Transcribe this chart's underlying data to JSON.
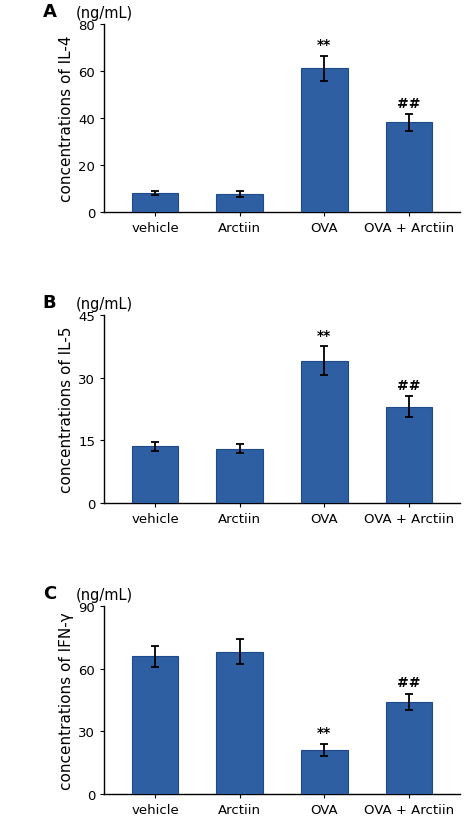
{
  "panels": [
    {
      "label": "A",
      "ylabel": "concentrations of IL-4",
      "unit": "(ng/mL)",
      "ylim": [
        0,
        80
      ],
      "yticks": [
        0,
        20,
        40,
        60,
        80
      ],
      "categories": [
        "vehicle",
        "Arctiin",
        "OVA",
        "OVA + Arctiin"
      ],
      "values": [
        8.0,
        7.5,
        61.0,
        38.0
      ],
      "errors": [
        1.0,
        1.2,
        5.5,
        3.5
      ],
      "annotations": [
        "",
        "",
        "**",
        "##"
      ]
    },
    {
      "label": "B",
      "ylabel": "concentrations of IL-5",
      "unit": "(ng/mL)",
      "ylim": [
        0,
        45
      ],
      "yticks": [
        0,
        15,
        30,
        45
      ],
      "categories": [
        "vehicle",
        "Arctiin",
        "OVA",
        "OVA + Arctiin"
      ],
      "values": [
        13.5,
        13.0,
        34.0,
        23.0
      ],
      "errors": [
        1.0,
        1.0,
        3.5,
        2.5
      ],
      "annotations": [
        "",
        "",
        "**",
        "##"
      ]
    },
    {
      "label": "C",
      "ylabel": "concentrations of IFN-γ",
      "unit": "(ng/mL)",
      "ylim": [
        0,
        90
      ],
      "yticks": [
        0,
        30,
        60,
        90
      ],
      "categories": [
        "vehicle",
        "Arctiin",
        "OVA",
        "OVA + Arctiin"
      ],
      "values": [
        66.0,
        68.0,
        21.0,
        44.0
      ],
      "errors": [
        5.0,
        6.0,
        3.0,
        4.0
      ],
      "annotations": [
        "",
        "",
        "**",
        "##"
      ]
    }
  ],
  "bar_color": "#2E5FA3",
  "bar_width": 0.55,
  "bar_edge_color": "#1e4a8a",
  "error_color": "black",
  "error_capsize": 3,
  "error_linewidth": 1.3,
  "annotation_fontsize": 10,
  "ylabel_fontsize": 11,
  "tick_fontsize": 9.5,
  "unit_fontsize": 10.5,
  "panel_label_fontsize": 13,
  "background_color": "white"
}
